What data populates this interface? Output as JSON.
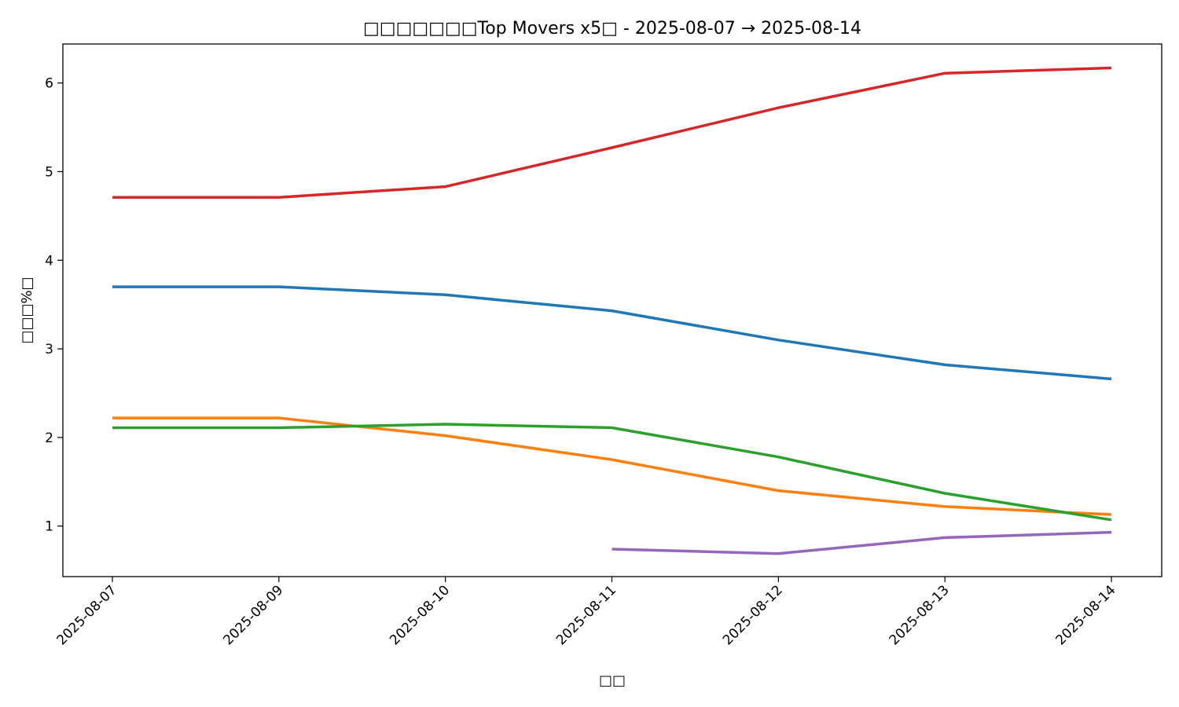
{
  "chart_data": {
    "type": "line",
    "title": "□□□□□□□Top Movers x5□ - 2025-08-07 → 2025-08-14",
    "xlabel": "□□",
    "ylabel": "□□□%□",
    "categories": [
      "2025-08-07",
      "2025-08-09",
      "2025-08-10",
      "2025-08-11",
      "2025-08-12",
      "2025-08-13",
      "2025-08-14"
    ],
    "ylim": [
      0.43,
      6.44
    ],
    "yticks": [
      1,
      2,
      3,
      4,
      5,
      6
    ],
    "grid": false,
    "series": [
      {
        "color": "#1f77b4",
        "values": [
          3.7,
          3.7,
          3.61,
          3.43,
          3.1,
          2.82,
          2.66
        ]
      },
      {
        "color": "#ff7f0e",
        "values": [
          2.22,
          2.22,
          2.02,
          1.75,
          1.4,
          1.22,
          1.13
        ]
      },
      {
        "color": "#2ca02c",
        "values": [
          2.11,
          2.11,
          2.15,
          2.11,
          1.78,
          1.37,
          1.07
        ]
      },
      {
        "color": "#d62728",
        "values": [
          4.71,
          4.71,
          4.83,
          5.27,
          5.72,
          6.11,
          6.17
        ]
      },
      {
        "color": "#9467bd",
        "values": [
          null,
          null,
          null,
          0.74,
          0.69,
          0.87,
          0.93
        ]
      }
    ]
  }
}
